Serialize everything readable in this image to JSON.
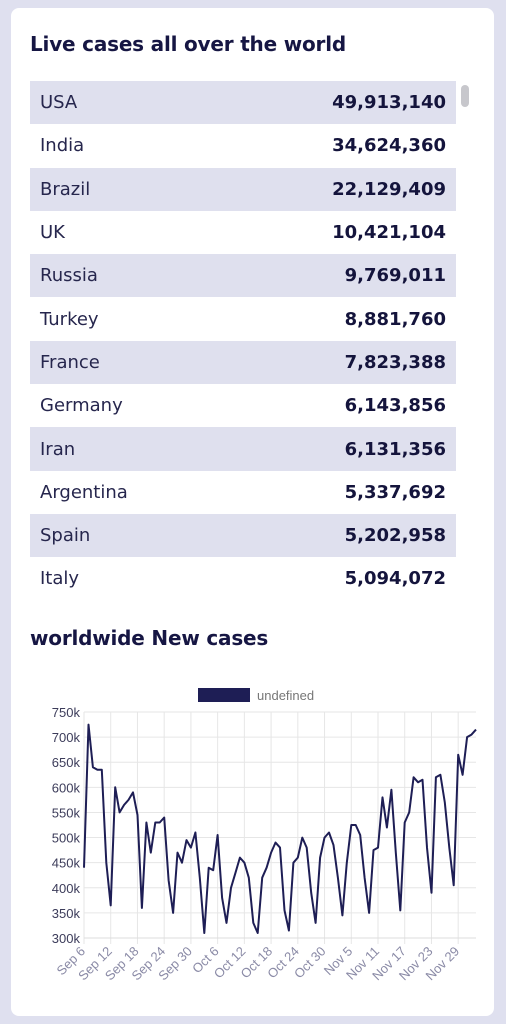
{
  "live_cases": {
    "title": "Live cases all over the world",
    "rows": [
      {
        "country": "USA",
        "count": "49,913,140"
      },
      {
        "country": "India",
        "count": "34,624,360"
      },
      {
        "country": "Brazil",
        "count": "22,129,409"
      },
      {
        "country": "UK",
        "count": "10,421,104"
      },
      {
        "country": "Russia",
        "count": "9,769,011"
      },
      {
        "country": "Turkey",
        "count": "8,881,760"
      },
      {
        "country": "France",
        "count": "7,823,388"
      },
      {
        "country": "Germany",
        "count": "6,143,856"
      },
      {
        "country": "Iran",
        "count": "6,131,356"
      },
      {
        "country": "Argentina",
        "count": "5,337,692"
      },
      {
        "country": "Spain",
        "count": "5,202,958"
      },
      {
        "country": "Italy",
        "count": "5,094,072"
      }
    ]
  },
  "new_cases": {
    "title": "worldwide New cases"
  },
  "chart_data": {
    "type": "line",
    "legend": "undefined",
    "legend_placement": "top",
    "grid": true,
    "ylim": [
      300000,
      750000
    ],
    "yticks": [
      "300k",
      "350k",
      "400k",
      "450k",
      "500k",
      "550k",
      "600k",
      "650k",
      "700k",
      "750k"
    ],
    "xticks": [
      "Sep 6",
      "Sep 12",
      "Sep 18",
      "Sep 24",
      "Sep 30",
      "Oct 6",
      "Oct 12",
      "Oct 18",
      "Oct 24",
      "Oct 30",
      "Nov 5",
      "Nov 11",
      "Nov 17",
      "Nov 23",
      "Nov 29"
    ],
    "x": [
      "Sep 6",
      "Sep 7",
      "Sep 8",
      "Sep 9",
      "Sep 10",
      "Sep 11",
      "Sep 12",
      "Sep 13",
      "Sep 14",
      "Sep 15",
      "Sep 16",
      "Sep 17",
      "Sep 18",
      "Sep 19",
      "Sep 20",
      "Sep 21",
      "Sep 22",
      "Sep 23",
      "Sep 24",
      "Sep 25",
      "Sep 26",
      "Sep 27",
      "Sep 28",
      "Sep 29",
      "Sep 30",
      "Oct 1",
      "Oct 2",
      "Oct 3",
      "Oct 4",
      "Oct 5",
      "Oct 6",
      "Oct 7",
      "Oct 8",
      "Oct 9",
      "Oct 10",
      "Oct 11",
      "Oct 12",
      "Oct 13",
      "Oct 14",
      "Oct 15",
      "Oct 16",
      "Oct 17",
      "Oct 18",
      "Oct 19",
      "Oct 20",
      "Oct 21",
      "Oct 22",
      "Oct 23",
      "Oct 24",
      "Oct 25",
      "Oct 26",
      "Oct 27",
      "Oct 28",
      "Oct 29",
      "Oct 30",
      "Oct 31",
      "Nov 1",
      "Nov 2",
      "Nov 3",
      "Nov 4",
      "Nov 5",
      "Nov 6",
      "Nov 7",
      "Nov 8",
      "Nov 9",
      "Nov 10",
      "Nov 11",
      "Nov 12",
      "Nov 13",
      "Nov 14",
      "Nov 15",
      "Nov 16",
      "Nov 17",
      "Nov 18",
      "Nov 19",
      "Nov 20",
      "Nov 21",
      "Nov 22",
      "Nov 23",
      "Nov 24",
      "Nov 25",
      "Nov 26",
      "Nov 27",
      "Nov 28",
      "Nov 29",
      "Nov 30",
      "Dec 1",
      "Dec 2",
      "Dec 3"
    ],
    "series": [
      {
        "values": [
          440000,
          725000,
          640000,
          635000,
          635000,
          450000,
          365000,
          600000,
          550000,
          565000,
          575000,
          590000,
          545000,
          360000,
          530000,
          470000,
          530000,
          530000,
          540000,
          415000,
          350000,
          470000,
          450000,
          495000,
          480000,
          510000,
          420000,
          310000,
          440000,
          435000,
          505000,
          380000,
          330000,
          400000,
          430000,
          460000,
          450000,
          420000,
          330000,
          310000,
          420000,
          440000,
          470000,
          490000,
          480000,
          355000,
          315000,
          450000,
          460000,
          500000,
          480000,
          390000,
          330000,
          460000,
          500000,
          510000,
          485000,
          420000,
          345000,
          450000,
          525000,
          525000,
          505000,
          420000,
          350000,
          475000,
          480000,
          580000,
          520000,
          595000,
          470000,
          355000,
          530000,
          550000,
          620000,
          610000,
          615000,
          480000,
          390000,
          620000,
          625000,
          570000,
          480000,
          405000,
          665000,
          625000,
          700000,
          705000,
          715000
        ]
      }
    ]
  },
  "colors": {
    "page_bg": "#dfe0ef",
    "card_bg": "#ffffff",
    "row_alt": "#dfe0ee",
    "series_line": "#1e1e55",
    "grid": "#e6e6e6",
    "tick_text": "#8a8aa6"
  }
}
